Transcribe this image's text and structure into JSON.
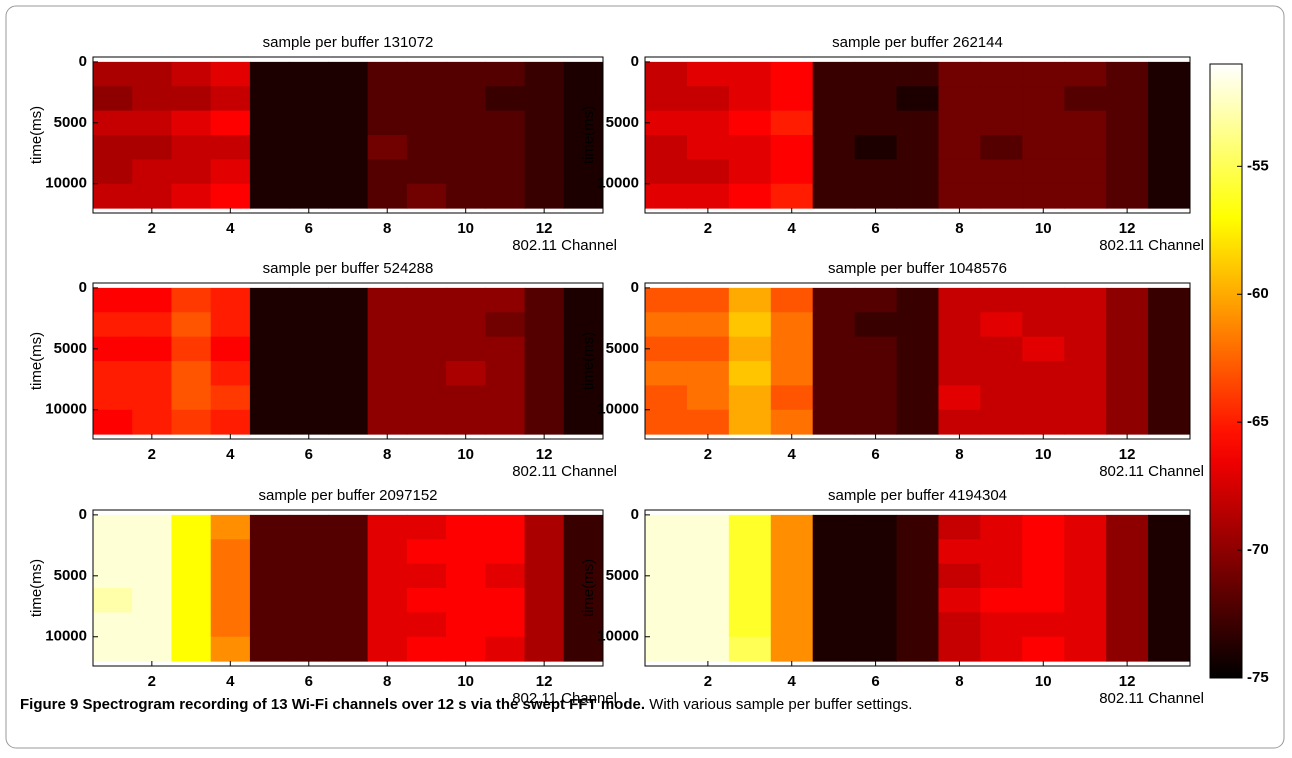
{
  "chart_data": [
    {
      "type": "heatmap",
      "title": "sample per buffer 131072",
      "xlabel": "802.11 Channel",
      "ylabel": "time(ms)",
      "x": [
        1,
        2,
        3,
        4,
        5,
        6,
        7,
        8,
        9,
        10,
        11,
        12,
        13
      ],
      "y": [
        1000,
        3000,
        5000,
        7000,
        9000,
        11000
      ],
      "values": [
        [
          -69,
          -69,
          -68,
          -67,
          -74,
          -74,
          -74,
          -72,
          -72,
          -72,
          -72,
          -73,
          -74
        ],
        [
          -70,
          -69,
          -69,
          -68,
          -74,
          -74,
          -74,
          -72,
          -72,
          -72,
          -73,
          -73,
          -74
        ],
        [
          -68,
          -68,
          -67,
          -66,
          -74,
          -74,
          -74,
          -72,
          -72,
          -72,
          -72,
          -73,
          -74
        ],
        [
          -69,
          -69,
          -68,
          -68,
          -74,
          -74,
          -74,
          -71,
          -72,
          -72,
          -72,
          -73,
          -74
        ],
        [
          -69,
          -68,
          -68,
          -67,
          -74,
          -74,
          -74,
          -72,
          -72,
          -72,
          -72,
          -73,
          -74
        ],
        [
          -68,
          -68,
          -67,
          -66,
          -74,
          -74,
          -74,
          -72,
          -71,
          -72,
          -72,
          -73,
          -74
        ]
      ],
      "xlim": [
        0.5,
        13.5
      ],
      "ylim": [
        12400,
        -400
      ],
      "xticks": [
        2,
        4,
        6,
        8,
        10,
        12
      ],
      "yticks": [
        0,
        5000,
        10000
      ]
    },
    {
      "type": "heatmap",
      "title": "sample per buffer 262144",
      "xlabel": "802.11 Channel",
      "ylabel": "time(ms)",
      "x": [
        1,
        2,
        3,
        4,
        5,
        6,
        7,
        8,
        9,
        10,
        11,
        12,
        13
      ],
      "y": [
        1000,
        3000,
        5000,
        7000,
        9000,
        11000
      ],
      "values": [
        [
          -68,
          -67,
          -67,
          -66,
          -73,
          -73,
          -73,
          -71,
          -71,
          -71,
          -71,
          -72,
          -74
        ],
        [
          -68,
          -68,
          -67,
          -66,
          -73,
          -73,
          -74,
          -71,
          -71,
          -71,
          -72,
          -72,
          -74
        ],
        [
          -67,
          -67,
          -66,
          -65,
          -73,
          -73,
          -73,
          -71,
          -71,
          -71,
          -71,
          -72,
          -74
        ],
        [
          -68,
          -67,
          -67,
          -66,
          -73,
          -74,
          -73,
          -71,
          -72,
          -71,
          -71,
          -72,
          -74
        ],
        [
          -68,
          -68,
          -67,
          -66,
          -73,
          -73,
          -73,
          -71,
          -71,
          -71,
          -71,
          -72,
          -74
        ],
        [
          -67,
          -67,
          -66,
          -65,
          -73,
          -73,
          -73,
          -71,
          -71,
          -71,
          -71,
          -72,
          -74
        ]
      ],
      "xlim": [
        0.5,
        13.5
      ],
      "ylim": [
        12400,
        -400
      ],
      "xticks": [
        2,
        4,
        6,
        8,
        10,
        12
      ],
      "yticks": [
        0,
        5000,
        10000
      ]
    },
    {
      "type": "heatmap",
      "title": "sample per buffer 524288",
      "xlabel": "802.11 Channel",
      "ylabel": "time(ms)",
      "x": [
        1,
        2,
        3,
        4,
        5,
        6,
        7,
        8,
        9,
        10,
        11,
        12,
        13
      ],
      "y": [
        1000,
        3000,
        5000,
        7000,
        9000,
        11000
      ],
      "values": [
        [
          -66,
          -66,
          -64,
          -65,
          -74,
          -74,
          -74,
          -70,
          -70,
          -70,
          -70,
          -72,
          -74
        ],
        [
          -65,
          -65,
          -63,
          -65,
          -74,
          -74,
          -74,
          -70,
          -70,
          -70,
          -71,
          -72,
          -74
        ],
        [
          -66,
          -66,
          -64,
          -66,
          -74,
          -74,
          -74,
          -70,
          -70,
          -70,
          -70,
          -72,
          -74
        ],
        [
          -65,
          -65,
          -63,
          -65,
          -74,
          -74,
          -74,
          -70,
          -70,
          -69,
          -70,
          -72,
          -74
        ],
        [
          -65,
          -65,
          -63,
          -64,
          -74,
          -74,
          -74,
          -70,
          -70,
          -70,
          -70,
          -72,
          -74
        ],
        [
          -66,
          -65,
          -64,
          -65,
          -74,
          -74,
          -74,
          -70,
          -70,
          -70,
          -70,
          -72,
          -74
        ]
      ],
      "xlim": [
        0.5,
        13.5
      ],
      "ylim": [
        12400,
        -400
      ],
      "xticks": [
        2,
        4,
        6,
        8,
        10,
        12
      ],
      "yticks": [
        0,
        5000,
        10000
      ]
    },
    {
      "type": "heatmap",
      "title": "sample per buffer 1048576",
      "xlabel": "802.11 Channel",
      "ylabel": "time(ms)",
      "x": [
        1,
        2,
        3,
        4,
        5,
        6,
        7,
        8,
        9,
        10,
        11,
        12,
        13
      ],
      "y": [
        1000,
        3000,
        5000,
        7000,
        9000,
        11000
      ],
      "values": [
        [
          -63,
          -63,
          -60,
          -63,
          -72,
          -72,
          -73,
          -68,
          -68,
          -68,
          -68,
          -70,
          -73
        ],
        [
          -62,
          -62,
          -59,
          -62,
          -72,
          -73,
          -73,
          -68,
          -67,
          -68,
          -68,
          -70,
          -73
        ],
        [
          -63,
          -63,
          -60,
          -62,
          -72,
          -72,
          -73,
          -68,
          -68,
          -67,
          -68,
          -70,
          -73
        ],
        [
          -62,
          -62,
          -59,
          -62,
          -72,
          -72,
          -73,
          -68,
          -68,
          -68,
          -68,
          -70,
          -73
        ],
        [
          -63,
          -62,
          -60,
          -63,
          -72,
          -72,
          -73,
          -67,
          -68,
          -68,
          -68,
          -70,
          -73
        ],
        [
          -63,
          -63,
          -60,
          -62,
          -72,
          -72,
          -73,
          -68,
          -68,
          -68,
          -68,
          -70,
          -73
        ]
      ],
      "xlim": [
        0.5,
        13.5
      ],
      "ylim": [
        12400,
        -400
      ],
      "xticks": [
        2,
        4,
        6,
        8,
        10,
        12
      ],
      "yticks": [
        0,
        5000,
        10000
      ]
    },
    {
      "type": "heatmap",
      "title": "sample per buffer 2097152",
      "xlabel": "802.11 Channel",
      "ylabel": "time(ms)",
      "x": [
        1,
        2,
        3,
        4,
        5,
        6,
        7,
        8,
        9,
        10,
        11,
        12,
        13
      ],
      "y": [
        1000,
        3000,
        5000,
        7000,
        9000,
        11000
      ],
      "values": [
        [
          -52,
          -52,
          -57,
          -61,
          -72,
          -72,
          -72,
          -67,
          -67,
          -66,
          -66,
          -69,
          -73
        ],
        [
          -52,
          -52,
          -57,
          -62,
          -72,
          -72,
          -72,
          -67,
          -66,
          -66,
          -66,
          -69,
          -73
        ],
        [
          -52,
          -52,
          -57,
          -62,
          -72,
          -72,
          -72,
          -67,
          -67,
          -66,
          -67,
          -69,
          -73
        ],
        [
          -53,
          -52,
          -57,
          -62,
          -72,
          -72,
          -72,
          -67,
          -66,
          -66,
          -66,
          -69,
          -73
        ],
        [
          -52,
          -52,
          -57,
          -62,
          -72,
          -72,
          -72,
          -67,
          -67,
          -66,
          -66,
          -69,
          -73
        ],
        [
          -52,
          -52,
          -57,
          -61,
          -72,
          -72,
          -72,
          -67,
          -66,
          -66,
          -67,
          -69,
          -73
        ]
      ],
      "xlim": [
        0.5,
        13.5
      ],
      "ylim": [
        12400,
        -400
      ],
      "xticks": [
        2,
        4,
        6,
        8,
        10,
        12
      ],
      "yticks": [
        0,
        5000,
        10000
      ]
    },
    {
      "type": "heatmap",
      "title": "sample per buffer 4194304",
      "xlabel": "802.11 Channel",
      "ylabel": "time(ms)",
      "x": [
        1,
        2,
        3,
        4,
        5,
        6,
        7,
        8,
        9,
        10,
        11,
        12,
        13
      ],
      "y": [
        1000,
        3000,
        5000,
        7000,
        9000,
        11000
      ],
      "values": [
        [
          -52,
          -52,
          -56,
          -61,
          -74,
          -74,
          -73,
          -68,
          -67,
          -66,
          -67,
          -70,
          -74
        ],
        [
          -52,
          -52,
          -56,
          -61,
          -74,
          -74,
          -73,
          -67,
          -67,
          -66,
          -67,
          -70,
          -74
        ],
        [
          -52,
          -52,
          -56,
          -61,
          -74,
          -74,
          -73,
          -68,
          -67,
          -66,
          -67,
          -70,
          -74
        ],
        [
          -52,
          -52,
          -56,
          -61,
          -74,
          -74,
          -73,
          -67,
          -66,
          -66,
          -67,
          -70,
          -74
        ],
        [
          -52,
          -52,
          -56,
          -61,
          -74,
          -74,
          -73,
          -68,
          -67,
          -67,
          -67,
          -70,
          -74
        ],
        [
          -52,
          -52,
          -55,
          -61,
          -74,
          -74,
          -73,
          -68,
          -67,
          -66,
          -67,
          -70,
          -74
        ]
      ],
      "xlim": [
        0.5,
        13.5
      ],
      "ylim": [
        12400,
        -400
      ],
      "xticks": [
        2,
        4,
        6,
        8,
        10,
        12
      ],
      "yticks": [
        0,
        5000,
        10000
      ]
    }
  ],
  "colorbar": {
    "colormap": "hot",
    "lim": [
      -75,
      -51
    ],
    "ticks": [
      -55,
      -60,
      -65,
      -70,
      -75
    ]
  },
  "caption": {
    "label": "Figure 9 Spectrogram recording of 13 Wi-Fi channels over 12 s via the swept FFT mode.",
    "text": "With various sample per buffer settings."
  }
}
